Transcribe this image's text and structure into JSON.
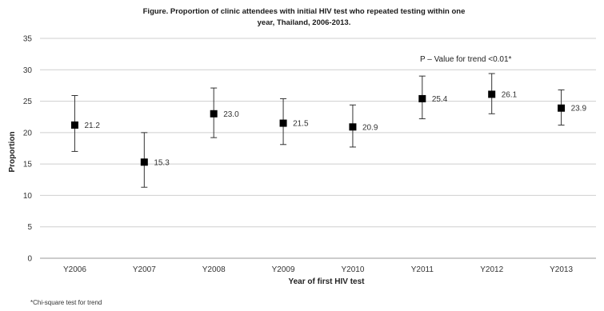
{
  "chart_data": {
    "type": "scatter",
    "title_line1": "Figure. Proportion of clinic attendees with initial HIV test who repeated testing within one",
    "title_line2": "year, Thailand, 2006-2013.",
    "xlabel": "Year of first HIV test",
    "ylabel": "Proportion",
    "ylim": [
      0,
      35
    ],
    "yticks": [
      0,
      5,
      10,
      15,
      20,
      25,
      30,
      35
    ],
    "grid": true,
    "categories": [
      "Y2006",
      "Y2007",
      "Y2008",
      "Y2009",
      "Y2010",
      "Y2011",
      "Y2012",
      "Y2013"
    ],
    "series": [
      {
        "values": [
          21.2,
          15.3,
          23.0,
          21.5,
          20.9,
          25.4,
          26.1,
          23.9
        ],
        "labels": [
          "21.2",
          "15.3",
          "23.0",
          "21.5",
          "20.9",
          "25.4",
          "26.1",
          "23.9"
        ],
        "error_low": [
          17.0,
          11.3,
          19.2,
          18.1,
          17.7,
          22.2,
          23.0,
          21.2
        ],
        "error_high": [
          25.9,
          20.0,
          27.1,
          25.4,
          24.4,
          29.0,
          29.4,
          26.8
        ]
      }
    ],
    "annotation": "P – Value for trend <0.01*",
    "footnote": "*Chi-square test for trend"
  }
}
